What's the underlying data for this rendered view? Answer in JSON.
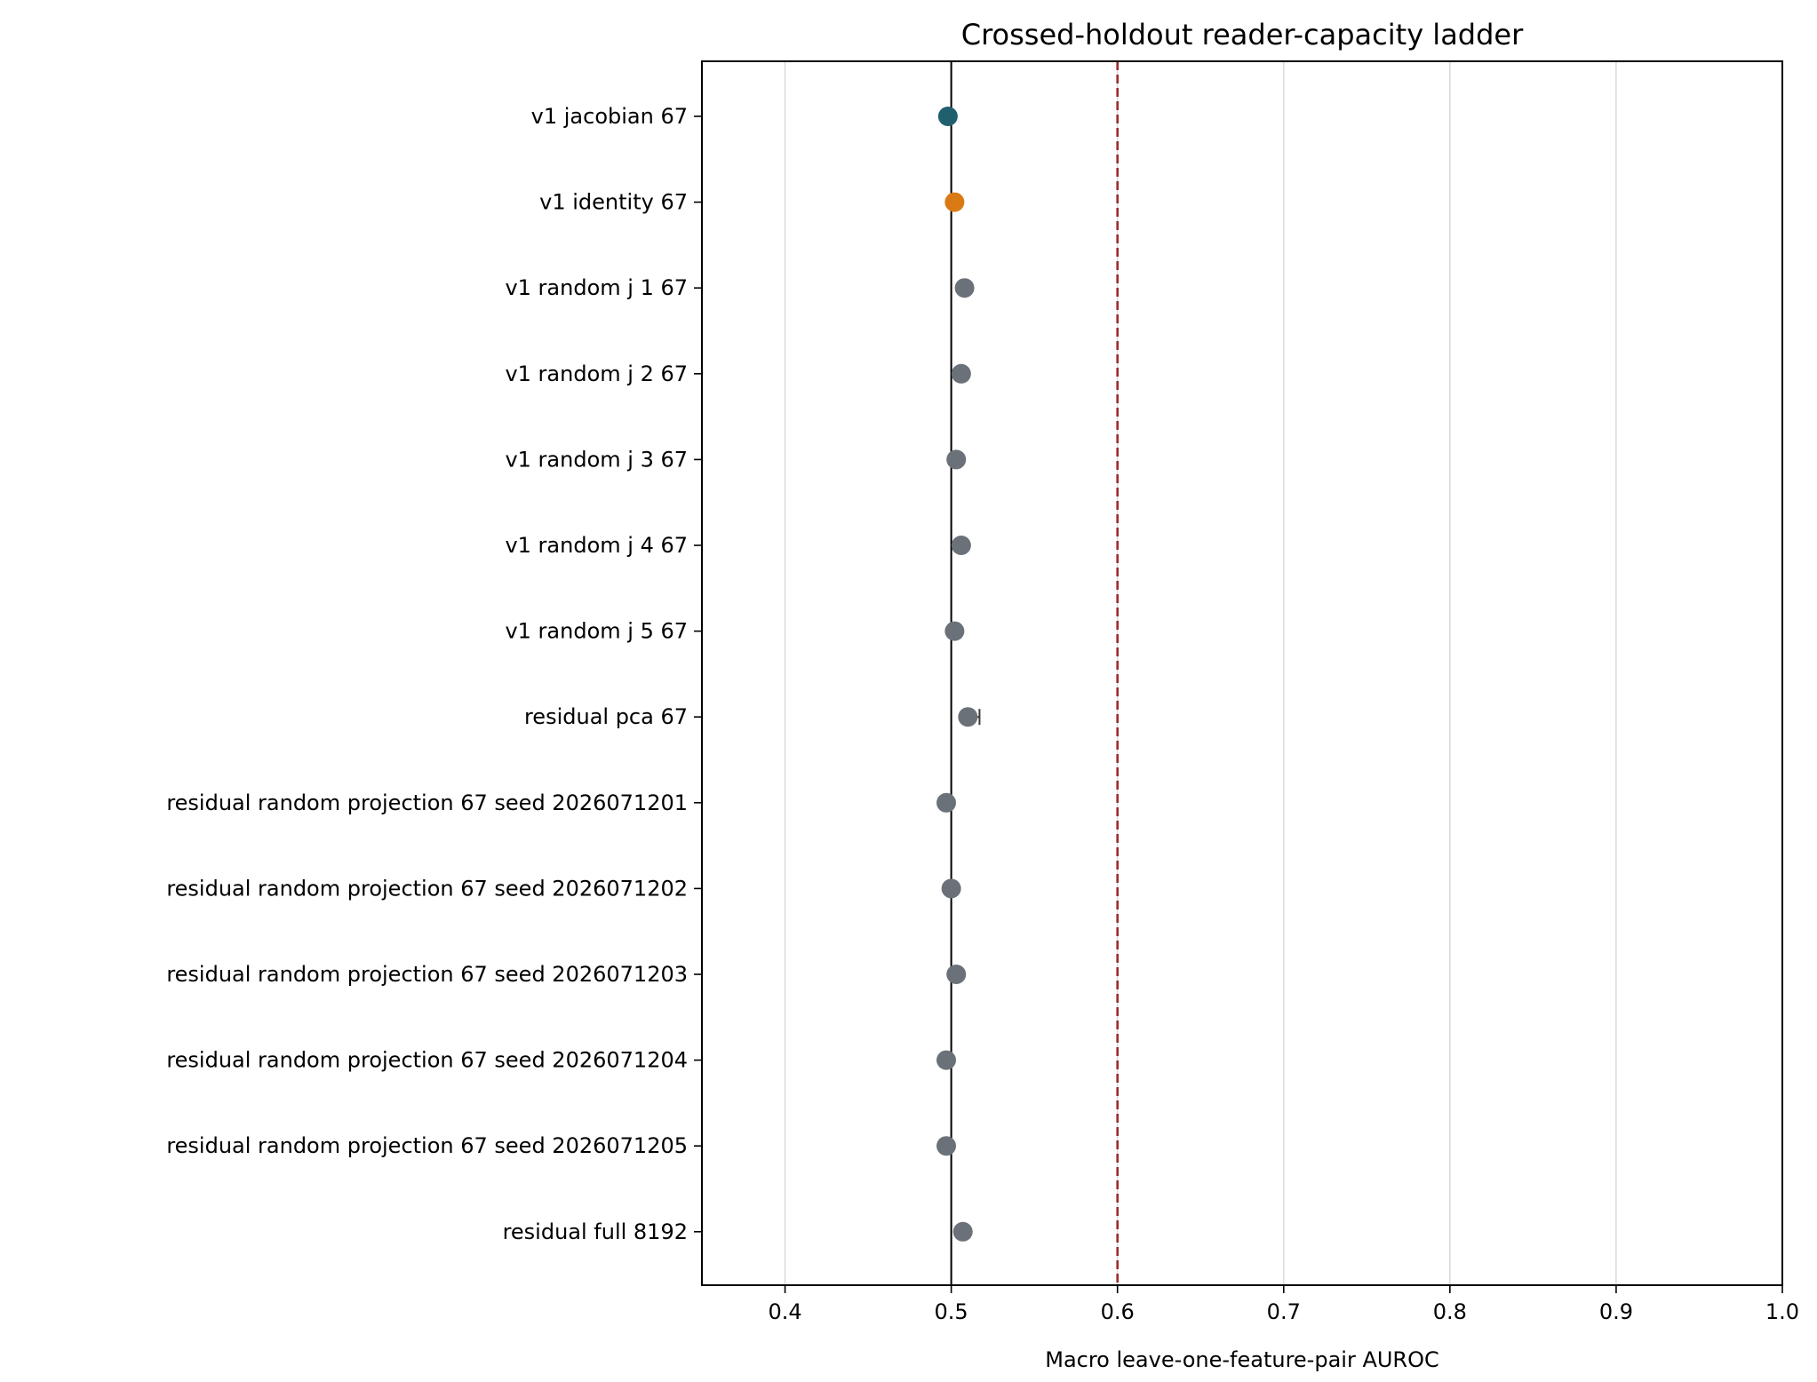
{
  "chart_data": {
    "type": "scatter",
    "orientation": "horizontal",
    "title": "Crossed-holdout reader-capacity ladder",
    "xlabel": "Macro leave-one-feature-pair AUROC",
    "ylabel": "",
    "xlim": [
      0.35,
      1.0
    ],
    "xticks": [
      "0.4",
      "0.5",
      "0.6",
      "0.7",
      "0.8",
      "0.9",
      "1.0"
    ],
    "xtick_values": [
      0.4,
      0.5,
      0.6,
      0.7,
      0.8,
      0.9,
      1.0
    ],
    "grid": "vertical",
    "reference_lines": [
      {
        "x": 0.5,
        "style": "solid",
        "color": "#000000"
      },
      {
        "x": 0.6,
        "style": "dashed",
        "color": "#a02c2c"
      }
    ],
    "categories": [
      "v1 jacobian 67",
      "v1 identity 67",
      "v1 random j 1 67",
      "v1 random j 2 67",
      "v1 random j 3 67",
      "v1 random j 4 67",
      "v1 random j 5 67",
      "residual pca 67",
      "residual random projection 67 seed 2026071201",
      "residual random projection 67 seed 2026071202",
      "residual random projection 67 seed 2026071203",
      "residual random projection 67 seed 2026071204",
      "residual random projection 67 seed 2026071205",
      "residual full 8192"
    ],
    "values": [
      0.498,
      0.502,
      0.508,
      0.506,
      0.503,
      0.506,
      0.502,
      0.51,
      0.497,
      0.5,
      0.503,
      0.497,
      0.497,
      0.507
    ],
    "error_high": [
      null,
      null,
      null,
      null,
      null,
      null,
      null,
      0.517,
      null,
      null,
      null,
      null,
      null,
      null
    ],
    "colors": [
      "#1f5f6e",
      "#d97a14",
      "#6b7178",
      "#6b7178",
      "#6b7178",
      "#6b7178",
      "#6b7178",
      "#6b7178",
      "#6b7178",
      "#6b7178",
      "#6b7178",
      "#6b7178",
      "#6b7178",
      "#6b7178"
    ]
  }
}
